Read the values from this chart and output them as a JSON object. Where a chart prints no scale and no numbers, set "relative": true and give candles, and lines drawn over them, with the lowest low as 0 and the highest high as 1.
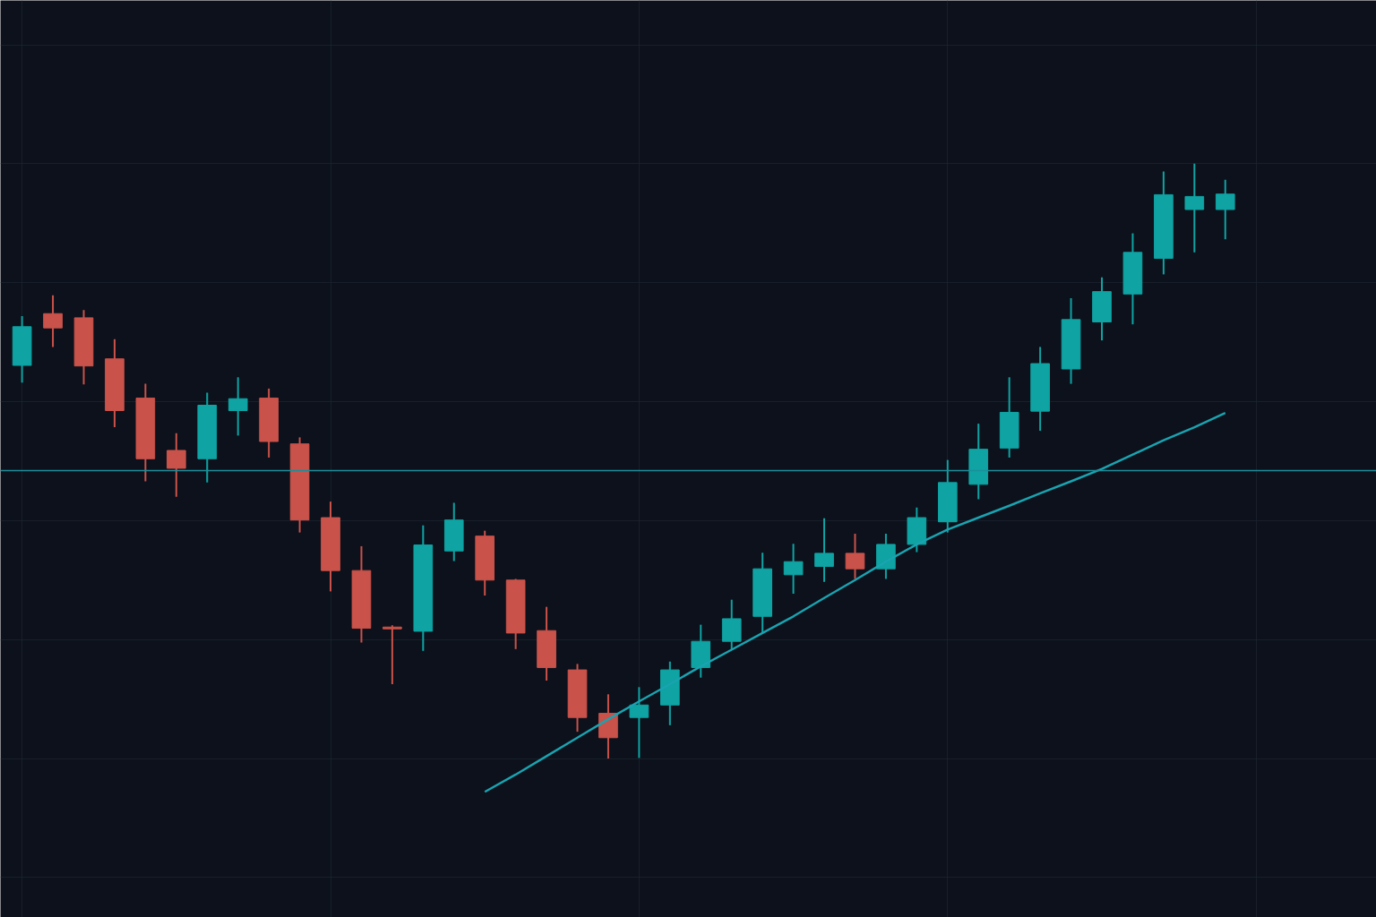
{
  "chart_data": {
    "type": "candlestick",
    "relative": true,
    "grid": true,
    "tick_labels": false,
    "categories": [
      null,
      null,
      null,
      null,
      null,
      null,
      null,
      null,
      null,
      null,
      null,
      null,
      null,
      null,
      null,
      null,
      null,
      null,
      null,
      null,
      null,
      null,
      null,
      null,
      null,
      null,
      null,
      null,
      null,
      null,
      null,
      null,
      null,
      null,
      null,
      null,
      null,
      null,
      null,
      null
    ],
    "ohlc": [
      [
        0.661,
        0.744,
        0.632,
        0.726
      ],
      [
        0.748,
        0.779,
        0.692,
        0.724
      ],
      [
        0.741,
        0.754,
        0.629,
        0.66
      ],
      [
        0.672,
        0.705,
        0.557,
        0.585
      ],
      [
        0.606,
        0.63,
        0.466,
        0.504
      ],
      [
        0.518,
        0.547,
        0.44,
        0.488
      ],
      [
        0.504,
        0.615,
        0.464,
        0.594
      ],
      [
        0.585,
        0.641,
        0.543,
        0.605
      ],
      [
        0.606,
        0.622,
        0.506,
        0.533
      ],
      [
        0.529,
        0.54,
        0.38,
        0.401
      ],
      [
        0.405,
        0.432,
        0.281,
        0.316
      ],
      [
        0.316,
        0.357,
        0.195,
        0.219
      ],
      [
        0.221,
        0.224,
        0.125,
        0.218
      ],
      [
        0.214,
        0.392,
        0.181,
        0.359
      ],
      [
        0.349,
        0.43,
        0.332,
        0.401
      ],
      [
        0.374,
        0.383,
        0.274,
        0.3
      ],
      [
        0.3,
        0.302,
        0.184,
        0.211
      ],
      [
        0.215,
        0.255,
        0.131,
        0.153
      ],
      [
        0.149,
        0.159,
        0.045,
        0.069
      ],
      [
        0.076,
        0.108,
        0,
        0.035
      ],
      [
        0.069,
        0.12,
        0.001,
        0.09
      ],
      [
        0.09,
        0.163,
        0.056,
        0.149
      ],
      [
        0.153,
        0.225,
        0.136,
        0.197
      ],
      [
        0.197,
        0.267,
        0.183,
        0.235
      ],
      [
        0.239,
        0.346,
        0.211,
        0.319
      ],
      [
        0.309,
        0.361,
        0.277,
        0.331
      ],
      [
        0.323,
        0.404,
        0.297,
        0.345
      ],
      [
        0.345,
        0.378,
        0.302,
        0.319
      ],
      [
        0.319,
        0.378,
        0.302,
        0.36
      ],
      [
        0.36,
        0.422,
        0.347,
        0.405
      ],
      [
        0.398,
        0.502,
        0.38,
        0.464
      ],
      [
        0.461,
        0.563,
        0.436,
        0.52
      ],
      [
        0.522,
        0.641,
        0.506,
        0.582
      ],
      [
        0.584,
        0.692,
        0.551,
        0.664
      ],
      [
        0.655,
        0.774,
        0.63,
        0.738
      ],
      [
        0.734,
        0.809,
        0.703,
        0.785
      ],
      [
        0.781,
        0.883,
        0.73,
        0.851
      ],
      [
        0.841,
        0.987,
        0.814,
        0.948
      ],
      [
        0.923,
        1.0,
        0.851,
        0.945
      ],
      [
        0.923,
        0.973,
        0.873,
        0.949
      ]
    ],
    "colors": [
      "#0fa3a3",
      "#c9524a",
      "#c9524a",
      "#c9524a",
      "#c9524a",
      "#c9524a",
      "#0fa3a3",
      "#0fa3a3",
      "#c9524a",
      "#c9524a",
      "#c9524a",
      "#c9524a",
      "#c9524a",
      "#0fa3a3",
      "#0fa3a3",
      "#c9524a",
      "#c9524a",
      "#c9524a",
      "#c9524a",
      "#c9524a",
      "#0fa3a3",
      "#0fa3a3",
      "#0fa3a3",
      "#0fa3a3",
      "#0fa3a3",
      "#0fa3a3",
      "#0fa3a3",
      "#c9524a",
      "#0fa3a3",
      "#0fa3a3",
      "#0fa3a3",
      "#0fa3a3",
      "#0fa3a3",
      "#0fa3a3",
      "#0fa3a3",
      "#0fa3a3",
      "#0fa3a3",
      "#0fa3a3",
      "#0fa3a3",
      "#0fa3a3"
    ],
    "series": [
      {
        "type": "line",
        "color": "#1aa3b0",
        "values": [
          null,
          null,
          null,
          null,
          null,
          null,
          null,
          null,
          null,
          null,
          null,
          null,
          null,
          null,
          null,
          -0.056,
          -0.027,
          0.004,
          0.035,
          0.066,
          0.096,
          0.125,
          0.155,
          0.183,
          0.211,
          0.239,
          0.27,
          0.3,
          0.331,
          0.36,
          0.385,
          0.405,
          0.425,
          0.446,
          0.466,
          0.487,
          0.511,
          0.535,
          0.557,
          0.581
        ]
      }
    ],
    "ref_lines": [
      {
        "axis": "y",
        "value": 0.484,
        "color": "#1a8f9a"
      }
    ]
  }
}
